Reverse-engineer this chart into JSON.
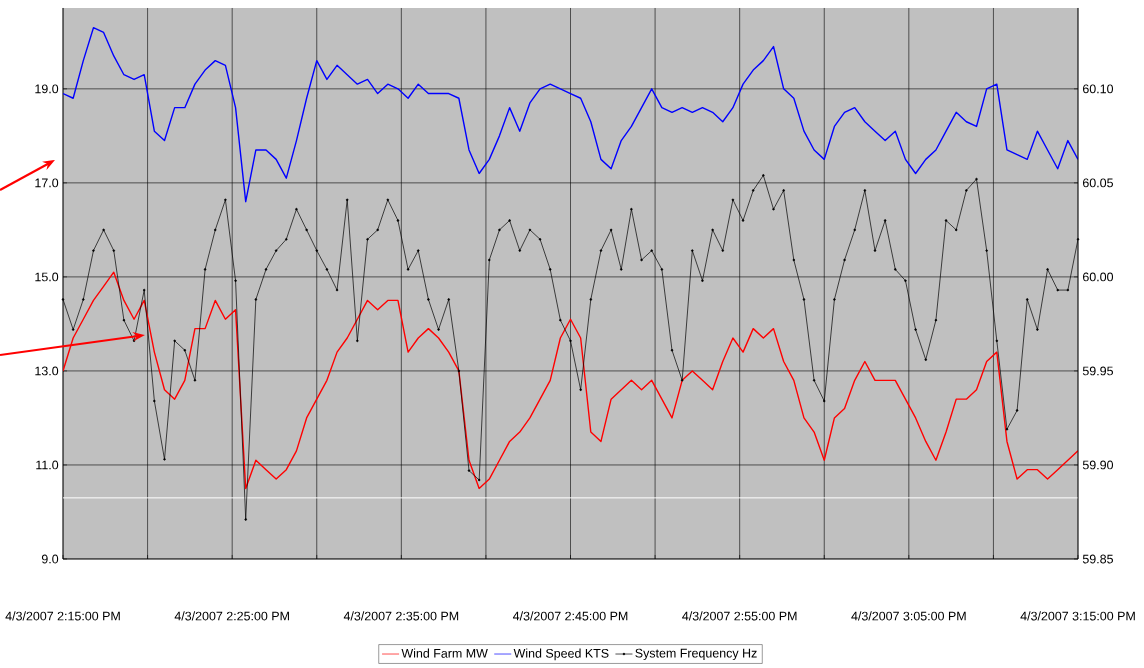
{
  "chart_data": {
    "type": "line",
    "x": [
      "2007-04-03T14:15:00",
      "2007-04-03T14:15:36",
      "2007-04-03T14:16:12",
      "2007-04-03T14:16:48",
      "2007-04-03T14:17:24",
      "2007-04-03T14:18:00",
      "2007-04-03T14:18:36",
      "2007-04-03T14:19:12",
      "2007-04-03T14:19:48",
      "2007-04-03T14:20:24",
      "2007-04-03T14:21:00",
      "2007-04-03T14:21:36",
      "2007-04-03T14:22:12",
      "2007-04-03T14:22:48",
      "2007-04-03T14:23:24",
      "2007-04-03T14:24:00",
      "2007-04-03T14:24:36",
      "2007-04-03T14:25:12",
      "2007-04-03T14:25:48",
      "2007-04-03T14:26:24",
      "2007-04-03T14:27:00",
      "2007-04-03T14:27:36",
      "2007-04-03T14:28:12",
      "2007-04-03T14:28:48",
      "2007-04-03T14:29:24",
      "2007-04-03T14:30:00",
      "2007-04-03T14:30:36",
      "2007-04-03T14:31:12",
      "2007-04-03T14:31:48",
      "2007-04-03T14:32:24",
      "2007-04-03T14:33:00",
      "2007-04-03T14:33:36",
      "2007-04-03T14:34:12",
      "2007-04-03T14:34:48",
      "2007-04-03T14:35:24",
      "2007-04-03T14:36:00",
      "2007-04-03T14:36:36",
      "2007-04-03T14:37:12",
      "2007-04-03T14:37:48",
      "2007-04-03T14:38:24",
      "2007-04-03T14:39:00",
      "2007-04-03T14:39:36",
      "2007-04-03T14:40:12",
      "2007-04-03T14:40:48",
      "2007-04-03T14:41:24",
      "2007-04-03T14:42:00",
      "2007-04-03T14:42:36",
      "2007-04-03T14:43:12",
      "2007-04-03T14:43:48",
      "2007-04-03T14:44:24",
      "2007-04-03T14:45:00",
      "2007-04-03T14:45:36",
      "2007-04-03T14:46:12",
      "2007-04-03T14:46:48",
      "2007-04-03T14:47:24",
      "2007-04-03T14:48:00",
      "2007-04-03T14:48:36",
      "2007-04-03T14:49:12",
      "2007-04-03T14:49:48",
      "2007-04-03T14:50:24",
      "2007-04-03T14:51:00",
      "2007-04-03T14:51:36",
      "2007-04-03T14:52:12",
      "2007-04-03T14:52:48",
      "2007-04-03T14:53:24",
      "2007-04-03T14:54:00",
      "2007-04-03T14:54:36",
      "2007-04-03T14:55:12",
      "2007-04-03T14:55:48",
      "2007-04-03T14:56:24",
      "2007-04-03T14:57:00",
      "2007-04-03T14:57:36",
      "2007-04-03T14:58:12",
      "2007-04-03T14:58:48",
      "2007-04-03T14:59:24",
      "2007-04-03T15:00:00",
      "2007-04-03T15:00:36",
      "2007-04-03T15:01:12",
      "2007-04-03T15:01:48",
      "2007-04-03T15:02:24",
      "2007-04-03T15:03:00",
      "2007-04-03T15:03:36",
      "2007-04-03T15:04:12",
      "2007-04-03T15:04:48",
      "2007-04-03T15:05:24",
      "2007-04-03T15:06:00",
      "2007-04-03T15:06:36",
      "2007-04-03T15:07:12",
      "2007-04-03T15:07:48",
      "2007-04-03T15:08:24",
      "2007-04-03T15:09:00",
      "2007-04-03T15:09:36",
      "2007-04-03T15:10:12",
      "2007-04-03T15:10:48",
      "2007-04-03T15:11:24",
      "2007-04-03T15:12:00",
      "2007-04-03T15:12:36",
      "2007-04-03T15:13:12",
      "2007-04-03T15:13:48",
      "2007-04-03T15:14:24",
      "2007-04-03T15:15:00"
    ],
    "series": [
      {
        "name": "Wind Farm MW",
        "color": "#ff0000",
        "marker": "none",
        "values": [
          13.0,
          13.7,
          14.1,
          14.5,
          14.8,
          15.1,
          14.5,
          14.1,
          14.5,
          13.4,
          12.6,
          12.4,
          12.8,
          13.9,
          13.9,
          14.5,
          14.1,
          14.3,
          10.5,
          11.1,
          10.9,
          10.7,
          10.9,
          11.3,
          12.0,
          12.4,
          12.8,
          13.4,
          13.7,
          14.1,
          14.5,
          14.3,
          14.5,
          14.5,
          13.4,
          13.7,
          13.9,
          13.7,
          13.4,
          13.0,
          11.1,
          10.5,
          10.7,
          11.1,
          11.5,
          11.7,
          12.0,
          12.4,
          12.8,
          13.7,
          14.1,
          13.7,
          11.7,
          11.5,
          12.4,
          12.6,
          12.8,
          12.6,
          12.8,
          12.4,
          12.0,
          12.8,
          13.0,
          12.8,
          12.6,
          13.2,
          13.7,
          13.4,
          13.9,
          13.7,
          13.9,
          13.2,
          12.8,
          12.0,
          11.7,
          11.1,
          12.0,
          12.2,
          12.8,
          13.2,
          12.8,
          12.8,
          12.8,
          12.4,
          12.0,
          11.5,
          11.1,
          11.7,
          12.4,
          12.4,
          12.6,
          13.2,
          13.4,
          11.5,
          10.7,
          10.9,
          10.9,
          10.7,
          10.9,
          11.1,
          11.3
        ]
      },
      {
        "name": "Wind Speed KTS",
        "color": "#0000ff",
        "marker": "none",
        "values": [
          18.9,
          18.8,
          19.6,
          20.3,
          20.2,
          19.7,
          19.3,
          19.2,
          19.3,
          18.1,
          17.9,
          18.6,
          18.6,
          19.1,
          19.4,
          19.6,
          19.5,
          18.6,
          16.6,
          17.7,
          17.7,
          17.5,
          17.1,
          17.9,
          18.8,
          19.6,
          19.2,
          19.5,
          19.3,
          19.1,
          19.2,
          18.9,
          19.1,
          19.0,
          18.8,
          19.1,
          18.9,
          18.9,
          18.9,
          18.8,
          17.7,
          17.2,
          17.5,
          18.0,
          18.6,
          18.1,
          18.7,
          19.0,
          19.1,
          19.0,
          18.9,
          18.8,
          18.3,
          17.5,
          17.3,
          17.9,
          18.2,
          18.6,
          19.0,
          18.6,
          18.5,
          18.6,
          18.5,
          18.6,
          18.5,
          18.3,
          18.6,
          19.1,
          19.4,
          19.6,
          19.9,
          19.0,
          18.8,
          18.1,
          17.7,
          17.5,
          18.2,
          18.5,
          18.6,
          18.3,
          18.1,
          17.9,
          18.1,
          17.5,
          17.2,
          17.5,
          17.7,
          18.1,
          18.5,
          18.3,
          18.2,
          19.0,
          19.1,
          17.7,
          17.6,
          17.5,
          18.1,
          17.7,
          17.3,
          17.9,
          17.5
        ]
      },
      {
        "name": "System Frequency Hz",
        "color": "#000000",
        "marker": "circle",
        "axis": "y2",
        "values": [
          59.988,
          59.972,
          59.988,
          60.014,
          60.025,
          60.014,
          59.977,
          59.966,
          59.993,
          59.934,
          59.903,
          59.966,
          59.961,
          59.945,
          60.004,
          60.025,
          60.041,
          59.998,
          59.871,
          59.988,
          60.004,
          60.014,
          60.02,
          60.036,
          60.025,
          60.014,
          60.004,
          59.993,
          60.041,
          59.966,
          60.02,
          60.025,
          60.041,
          60.03,
          60.004,
          60.014,
          59.988,
          59.972,
          59.988,
          59.95,
          59.897,
          59.892,
          60.009,
          60.025,
          60.03,
          60.014,
          60.025,
          60.02,
          60.004,
          59.977,
          59.966,
          59.94,
          59.988,
          60.014,
          60.025,
          60.004,
          60.036,
          60.009,
          60.014,
          60.004,
          59.961,
          59.945,
          60.014,
          59.998,
          60.025,
          60.014,
          60.041,
          60.03,
          60.046,
          60.054,
          60.036,
          60.046,
          60.009,
          59.988,
          59.945,
          59.934,
          59.988,
          60.009,
          60.025,
          60.046,
          60.014,
          60.03,
          60.004,
          59.998,
          59.972,
          59.956,
          59.977,
          60.03,
          60.025,
          60.046,
          60.052,
          60.014,
          59.966,
          59.919,
          59.929,
          59.988,
          59.972,
          60.004,
          59.993,
          59.993,
          60.02
        ]
      }
    ],
    "xlim": [
      "2007-04-03T14:15",
      "2007-04-03T15:15"
    ],
    "xticks": [
      {
        "value": "2007-04-03T14:15",
        "label": "4/3/2007 2:15:00 PM"
      },
      {
        "value": "2007-04-03T14:20",
        "label": null
      },
      {
        "value": "2007-04-03T14:25",
        "label": "4/3/2007 2:25:00 PM"
      },
      {
        "value": "2007-04-03T14:30",
        "label": null
      },
      {
        "value": "2007-04-03T14:35",
        "label": "4/3/2007 2:35:00 PM"
      },
      {
        "value": "2007-04-03T14:40",
        "label": null
      },
      {
        "value": "2007-04-03T14:45",
        "label": "4/3/2007 2:45:00 PM"
      },
      {
        "value": "2007-04-03T14:50",
        "label": null
      },
      {
        "value": "2007-04-03T14:55",
        "label": "4/3/2007 2:55:00 PM"
      },
      {
        "value": "2007-04-03T15:00",
        "label": null
      },
      {
        "value": "2007-04-03T15:05",
        "label": "4/3/2007 3:05:00 PM"
      },
      {
        "value": "2007-04-03T15:10",
        "label": null
      },
      {
        "value": "2007-04-03T15:15",
        "label": "4/3/2007 3:15:00 PM"
      }
    ],
    "ylim": [
      9,
      20.72
    ],
    "yticks": [
      {
        "value": 9,
        "label": "9.0"
      },
      {
        "value": 11,
        "label": "11.0"
      },
      {
        "value": 13,
        "label": "13.0"
      },
      {
        "value": 15,
        "label": "15.0"
      },
      {
        "value": 17,
        "label": "17.0"
      },
      {
        "value": 19,
        "label": "19.0"
      }
    ],
    "y2lim": [
      59.85,
      60.143
    ],
    "y2ticks": [
      59.85,
      {
        "value": 59.9,
        "label": "59.90"
      },
      59.95,
      {
        "value": 60.0,
        "label": "60.00"
      },
      60.05,
      {
        "value": 60.1,
        "label": "60.10"
      }
    ],
    "ref_lines": [
      {
        "axis": "y",
        "value": 10.3,
        "color": "#ffffff"
      }
    ],
    "grid": true,
    "legend": "bottom",
    "line_style": "solid"
  }
}
